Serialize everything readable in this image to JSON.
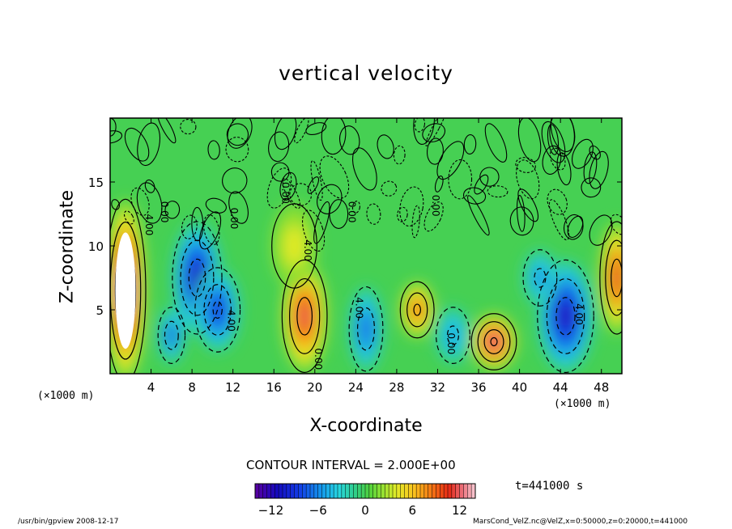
{
  "chart_data": {
    "type": "heatmap",
    "title": "vertical velocity",
    "xlabel": "X-coordinate",
    "ylabel": "Z-coordinate",
    "x_unit": "(×1000 m)",
    "xlim": [
      0,
      50
    ],
    "ylim": [
      0,
      20
    ],
    "x_ticks": [
      4,
      8,
      12,
      16,
      20,
      24,
      28,
      32,
      36,
      40,
      44,
      48
    ],
    "y_ticks": [
      5,
      10,
      15
    ],
    "contour_interval": "CONTOUR INTERVAL = 2.000E+00",
    "contour_labels": [
      "4.00",
      "0.00",
      "0.00",
      "0.00",
      "4.00",
      "0.00",
      "0.00",
      "4.00",
      "4.00",
      "0.00",
      "0.00",
      "4.00"
    ],
    "colorbar": {
      "min": -14,
      "max": 14,
      "tick_labels": [
        "−12",
        "−6",
        "0",
        "6",
        "12"
      ],
      "tick_values": [
        -12,
        -6,
        0,
        6,
        12
      ]
    },
    "features": [
      {
        "x": 1.5,
        "z": 6.5,
        "value": 16,
        "rx": 1.8,
        "rz": 6.5
      },
      {
        "x": 8.5,
        "z": 7.5,
        "value": -12,
        "rx": 2.2,
        "rz": 4.0
      },
      {
        "x": 10.5,
        "z": 5.0,
        "value": -9,
        "rx": 2.0,
        "rz": 3.0
      },
      {
        "x": 6.0,
        "z": 3.0,
        "value": -8,
        "rx": 1.2,
        "rz": 2.0
      },
      {
        "x": 19.0,
        "z": 4.5,
        "value": 12,
        "rx": 2.0,
        "rz": 4.0
      },
      {
        "x": 18.0,
        "z": 10.0,
        "value": 4,
        "rx": 2.0,
        "rz": 3.0
      },
      {
        "x": 25.0,
        "z": 3.5,
        "value": -7,
        "rx": 1.5,
        "rz": 3.0
      },
      {
        "x": 30.0,
        "z": 5.0,
        "value": 9,
        "rx": 1.5,
        "rz": 2.0
      },
      {
        "x": 33.5,
        "z": 3.0,
        "value": -5,
        "rx": 1.5,
        "rz": 2.0
      },
      {
        "x": 37.5,
        "z": 2.5,
        "value": 13,
        "rx": 2.0,
        "rz": 2.0
      },
      {
        "x": 44.5,
        "z": 4.5,
        "value": -12,
        "rx": 2.5,
        "rz": 4.0
      },
      {
        "x": 42.0,
        "z": 7.5,
        "value": -6,
        "rx": 1.5,
        "rz": 2.0
      },
      {
        "x": 49.5,
        "z": 7.5,
        "value": 11,
        "rx": 1.5,
        "rz": 4.0
      }
    ]
  },
  "timestamp": "t=441000 s",
  "footer": {
    "left": "/usr/bin/gpview   2008-12-17",
    "right": "MarsCond_VelZ.nc@VelZ,x=0:50000,z=0:20000,t=441000"
  },
  "colors": {
    "background": "#ffffff",
    "frame": "#000000"
  }
}
